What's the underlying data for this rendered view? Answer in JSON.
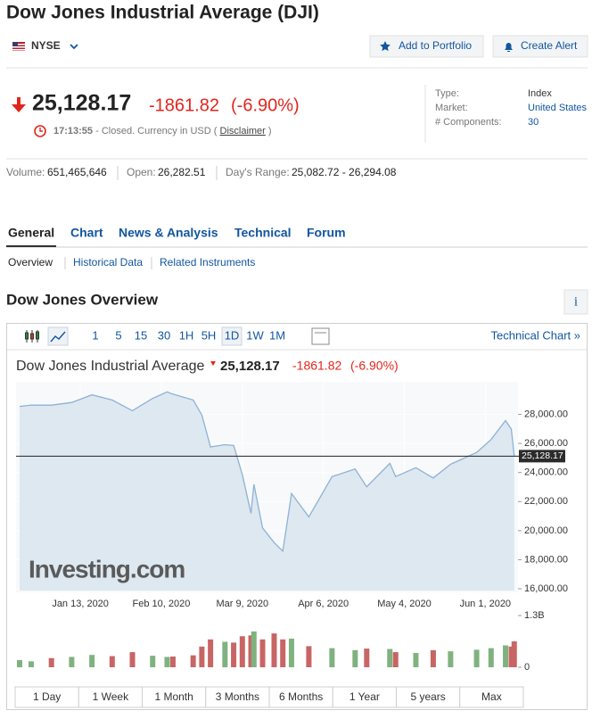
{
  "header": {
    "title": "Dow Jones Industrial Average (DJI)",
    "exchange": "NYSE",
    "buttons": [
      "Add to Portfolio",
      "Create Alert"
    ]
  },
  "quote": {
    "price": "25,128.17",
    "change": "-1861.82",
    "change_percent": "(-6.90%)",
    "time": "17:13:55",
    "status": "- Closed. Currency in USD (",
    "disclaimer": "Disclaimer",
    "status_end": ")"
  },
  "info": [
    {
      "label": "Type:",
      "value": "Index"
    },
    {
      "label": "Market:",
      "value": "United States"
    },
    {
      "label": "# Components:",
      "value": "30"
    }
  ],
  "stats": [
    {
      "label": "Volume:",
      "value": "651,465,646"
    },
    {
      "label": "Open:",
      "value": "26,282.51"
    },
    {
      "label": "Day's Range:",
      "value": "25,082.72 - 26,294.08"
    }
  ],
  "tabs": [
    "General",
    "Chart",
    "News & Analysis",
    "Technical",
    "Forum"
  ],
  "subtabs": [
    "Overview",
    "Historical Data",
    "Related Instruments"
  ],
  "section_title": "Dow Jones Overview",
  "info_icon": "i",
  "chart_toolbar": {
    "intervals": [
      "1",
      "5",
      "15",
      "30",
      "1H",
      "5H",
      "1D",
      "1W",
      "1M"
    ],
    "link": "Technical Chart »"
  },
  "chart": {
    "type": "line",
    "title": "Dow Jones Industrial Average",
    "x": [
      "2019-12-23",
      "2019-12-27",
      "2020-01-03",
      "2020-01-10",
      "2020-01-17",
      "2020-01-24",
      "2020-01-31",
      "2020-02-07",
      "2020-02-12",
      "2020-02-14",
      "2020-02-21",
      "2020-02-24",
      "2020-02-27",
      "2020-03-03",
      "2020-03-06",
      "2020-03-09",
      "2020-03-12",
      "2020-03-13",
      "2020-03-16",
      "2020-03-20",
      "2020-03-23",
      "2020-03-26",
      "2020-04-01",
      "2020-04-09",
      "2020-04-17",
      "2020-04-21",
      "2020-04-29",
      "2020-05-01",
      "2020-05-08",
      "2020-05-14",
      "2020-05-20",
      "2020-05-29",
      "2020-06-03",
      "2020-06-08",
      "2020-06-10",
      "2020-06-11"
    ],
    "values": [
      28551,
      28645,
      28634,
      28823,
      29348,
      28990,
      28256,
      29102,
      29551,
      29398,
      28992,
      27961,
      25766,
      25917,
      25864,
      23851,
      21200,
      23185,
      20188,
      19174,
      18592,
      22552,
      20943,
      23719,
      24242,
      23018,
      24634,
      23724,
      24331,
      23625,
      24575,
      25383,
      26270,
      27572,
      26990,
      25128.17
    ],
    "color": "#8fb1d4",
    "fill": "#dde8f1",
    "xlim": [
      "2019-12-23",
      "2020-06-12"
    ],
    "xticks": [
      {
        "value": "2020-01-13",
        "label": "Jan 13, 2020"
      },
      {
        "value": "2020-02-10",
        "label": "Feb 10, 2020"
      },
      {
        "value": "2020-03-09",
        "label": "Mar 9, 2020"
      },
      {
        "value": "2020-04-06",
        "label": "Apr 6, 2020"
      },
      {
        "value": "2020-05-04",
        "label": "May 4, 2020"
      },
      {
        "value": "2020-06-01",
        "label": "Jun 1, 2020"
      }
    ],
    "ylim": [
      16000,
      30000
    ],
    "yticks": [
      {
        "value": 16000,
        "label": "16,000.00"
      },
      {
        "value": 18000,
        "label": "18,000.00"
      },
      {
        "value": 20000,
        "label": "20,000.00"
      },
      {
        "value": 22000,
        "label": "22,000.00"
      },
      {
        "value": 24000,
        "label": "24,000.00"
      },
      {
        "value": 26000,
        "label": "26,000.00"
      },
      {
        "value": 28000,
        "label": "28,000.00"
      }
    ],
    "watermark": "Investing.com",
    "volume": {
      "values": [
        180000000,
        150000000,
        230000000,
        260000000,
        310000000,
        280000000,
        380000000,
        290000000,
        260000000,
        270000000,
        300000000,
        520000000,
        700000000,
        640000000,
        620000000,
        780000000,
        800000000,
        900000000,
        700000000,
        850000000,
        700000000,
        720000000,
        530000000,
        480000000,
        430000000,
        470000000,
        460000000,
        380000000,
        360000000,
        430000000,
        400000000,
        440000000,
        480000000,
        550000000,
        520000000,
        651465646
      ],
      "ylim": [
        0,
        1300000000
      ],
      "yticks": [
        0,
        {
          "value": 1300000000,
          "label": "1.3B"
        }
      ],
      "up_color": "#7fb27f",
      "down_color": "#c86565"
    }
  },
  "ranges": [
    "1 Day",
    "1 Week",
    "1 Month",
    "3 Months",
    "6 Months",
    "1 Year",
    "5 years",
    "Max"
  ]
}
